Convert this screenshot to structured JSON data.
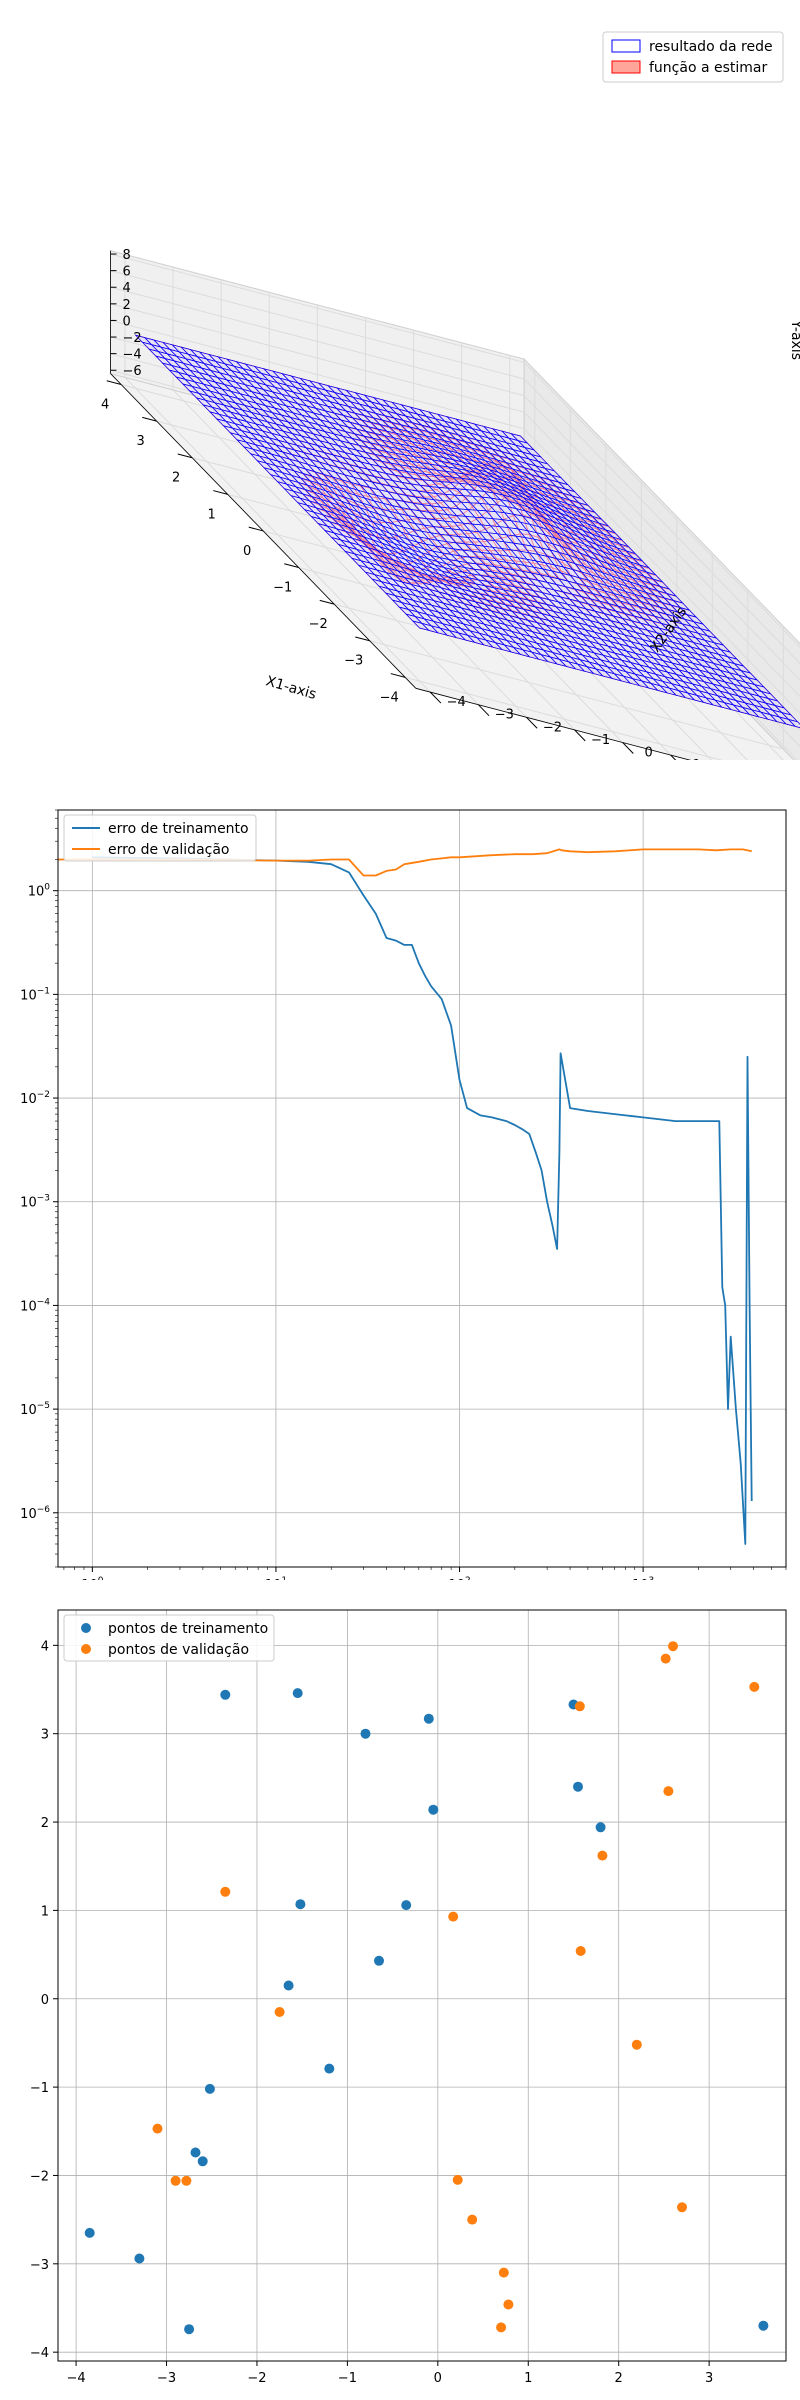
{
  "chart_data": [
    {
      "type": "surface3d",
      "title": "",
      "xlabel": "X1-axis",
      "ylabel": "X2-axis",
      "zlabel": "Y-axis",
      "xlim": [
        -4,
        4
      ],
      "ylim": [
        -4,
        4
      ],
      "zlim": [
        -6,
        8
      ],
      "xticks": [
        "−4",
        "−3",
        "−2",
        "−1",
        "0",
        "1",
        "2",
        "3",
        "4"
      ],
      "yticks": [
        "−4",
        "−3",
        "−2",
        "−1",
        "0",
        "1",
        "2",
        "3",
        "4"
      ],
      "zticks": [
        "−6",
        "−4",
        "−2",
        "0",
        "2",
        "4",
        "6",
        "8"
      ],
      "legend_position": "top-right",
      "series": [
        {
          "name": "resultado da rede",
          "color": "#0000ff",
          "peak_max": 1.8,
          "trough_min": -1.0
        },
        {
          "name": "função a estimar",
          "color": "#ff0000",
          "peak_max": 7.8,
          "trough_min": -5.8
        }
      ]
    },
    {
      "type": "line",
      "title": "",
      "xlabel": "",
      "ylabel": "",
      "x_scale": "log",
      "y_scale": "log",
      "xlim": [
        0.65,
        6000
      ],
      "ylim": [
        3e-07,
        6
      ],
      "grid": true,
      "legend_position": "top-left",
      "xticks": [
        {
          "base": "10",
          "exp": "0"
        },
        {
          "base": "10",
          "exp": "1"
        },
        {
          "base": "10",
          "exp": "2"
        },
        {
          "base": "10",
          "exp": "3"
        }
      ],
      "yticks": [
        {
          "base": "10",
          "exp": "−6"
        },
        {
          "base": "10",
          "exp": "−5"
        },
        {
          "base": "10",
          "exp": "−4"
        },
        {
          "base": "10",
          "exp": "−3"
        },
        {
          "base": "10",
          "exp": "−2"
        },
        {
          "base": "10",
          "exp": "−1"
        },
        {
          "base": "10",
          "exp": "0"
        }
      ],
      "series": [
        {
          "name": "erro de treinamento",
          "color": "#1f77b4",
          "x": [
            1,
            3,
            10,
            15,
            20,
            25,
            30,
            35,
            40,
            45,
            50,
            55,
            60,
            65,
            70,
            80,
            90,
            100,
            110,
            130,
            150,
            180,
            200,
            220,
            240,
            260,
            280,
            300,
            320,
            340,
            350,
            355,
            400,
            500,
            700,
            1000,
            1500,
            2000,
            2400,
            2600,
            2700,
            2800,
            2900,
            3000,
            3200,
            3400,
            3600,
            3700,
            3800,
            3900
          ],
          "y": [
            2.1,
            2.05,
            1.95,
            1.9,
            1.8,
            1.5,
            0.9,
            0.6,
            0.35,
            0.33,
            0.3,
            0.3,
            0.2,
            0.15,
            0.12,
            0.09,
            0.05,
            0.015,
            0.008,
            0.0068,
            0.0065,
            0.006,
            0.0055,
            0.005,
            0.0045,
            0.003,
            0.002,
            0.001,
            0.0006,
            0.00035,
            0.003,
            0.027,
            0.008,
            0.0075,
            0.007,
            0.0065,
            0.006,
            0.006,
            0.006,
            0.006,
            0.00015,
            0.0001,
            1e-05,
            5e-05,
            1e-05,
            3e-06,
            5e-07,
            0.025,
            0.0001,
            1.3e-06
          ]
        },
        {
          "name": "erro de validação",
          "color": "#ff7f0e",
          "x": [
            0.65,
            1,
            3,
            10,
            15,
            20,
            25,
            28,
            30,
            35,
            40,
            45,
            50,
            60,
            70,
            80,
            90,
            100,
            150,
            200,
            250,
            300,
            350,
            360,
            400,
            500,
            700,
            1000,
            1500,
            2000,
            2500,
            3000,
            3500,
            3900
          ],
          "y": [
            2.0,
            2.0,
            2.0,
            1.95,
            1.95,
            2.0,
            2.0,
            1.6,
            1.4,
            1.4,
            1.55,
            1.6,
            1.8,
            1.9,
            2.0,
            2.05,
            2.1,
            2.1,
            2.2,
            2.25,
            2.25,
            2.3,
            2.5,
            2.45,
            2.4,
            2.35,
            2.4,
            2.5,
            2.5,
            2.5,
            2.45,
            2.5,
            2.5,
            2.4
          ]
        }
      ]
    },
    {
      "type": "scatter",
      "title": "",
      "xlabel": "",
      "ylabel": "",
      "xlim": [
        -4.2,
        3.85
      ],
      "ylim": [
        -4.1,
        4.4
      ],
      "grid": true,
      "legend_position": "top-left",
      "xticks": [
        "−4",
        "−3",
        "−2",
        "−1",
        "0",
        "1",
        "2",
        "3"
      ],
      "yticks": [
        "−4",
        "−3",
        "−2",
        "−1",
        "0",
        "1",
        "2",
        "3",
        "4"
      ],
      "series": [
        {
          "name": "pontos de treinamento",
          "color": "#1f77b4",
          "x": [
            -2.35,
            -1.55,
            -0.8,
            -0.1,
            1.5,
            1.55,
            1.8,
            -0.05,
            -1.52,
            -0.35,
            -0.65,
            -1.65,
            -1.2,
            -2.52,
            -2.68,
            -2.6,
            -3.85,
            -3.3,
            -2.75,
            3.6
          ],
          "y": [
            3.44,
            3.46,
            3.0,
            3.17,
            3.33,
            2.4,
            1.94,
            2.14,
            1.07,
            1.06,
            0.43,
            0.15,
            -0.79,
            -1.02,
            -1.74,
            -1.84,
            -2.65,
            -2.94,
            -3.74,
            -3.7
          ]
        },
        {
          "name": "pontos de validação",
          "color": "#ff7f0e",
          "x": [
            2.6,
            2.52,
            3.5,
            1.57,
            2.55,
            1.82,
            -2.35,
            0.17,
            1.58,
            -1.75,
            2.2,
            -3.1,
            -2.9,
            -2.78,
            0.22,
            0.38,
            2.7,
            0.73,
            0.78,
            0.7
          ],
          "y": [
            3.99,
            3.85,
            3.53,
            3.31,
            2.35,
            1.62,
            1.21,
            0.93,
            0.54,
            -0.15,
            -0.52,
            -1.47,
            -2.06,
            -2.06,
            -2.05,
            -2.5,
            -2.36,
            -3.1,
            -3.46,
            -3.72
          ]
        }
      ]
    }
  ]
}
